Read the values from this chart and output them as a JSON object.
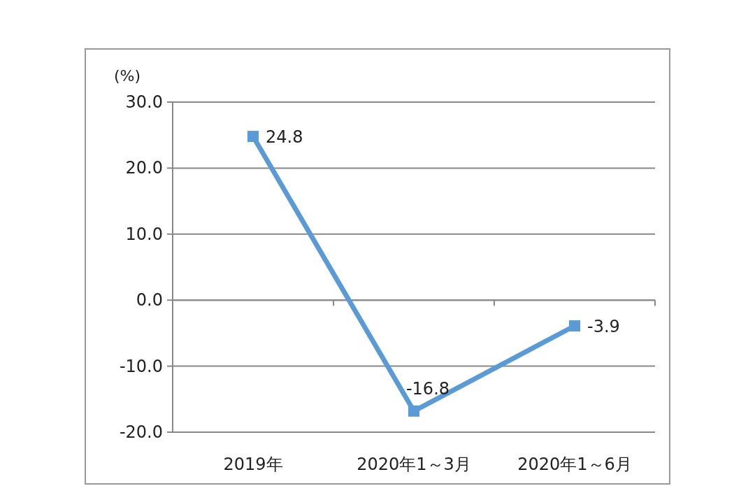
{
  "chart_data": {
    "type": "line",
    "ylabel": "(%)",
    "categories": [
      "2019年",
      "2020年1～3月",
      "2020年1～6月"
    ],
    "series": [
      {
        "color": "#5b9bd5",
        "values": [
          24.8,
          -16.8,
          -3.9
        ]
      }
    ],
    "ylim": [
      -20,
      30
    ],
    "yticks": [
      {
        "value": -20,
        "label": "-20.0"
      },
      {
        "value": -10,
        "label": "-10.0"
      },
      {
        "value": 0,
        "label": "0.0"
      },
      {
        "value": 10,
        "label": "10.0"
      },
      {
        "value": 20,
        "label": "20.0"
      },
      {
        "value": 30,
        "label": "30.0"
      }
    ],
    "grid": "y",
    "marker": "square",
    "line_style": "solid",
    "data_labels": true
  }
}
